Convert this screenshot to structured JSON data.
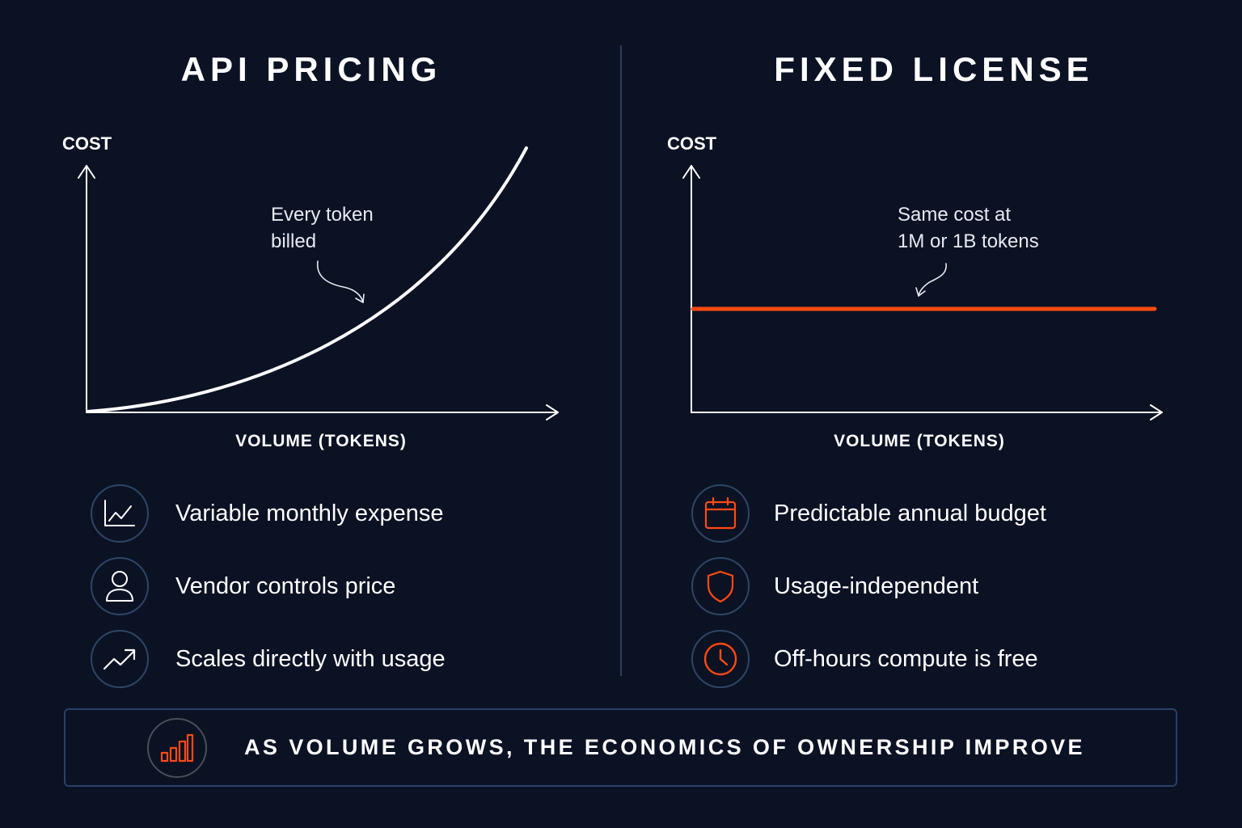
{
  "left": {
    "title": "API PRICING",
    "chart": {
      "y_label": "COST",
      "x_label": "VOLUME (TOKENS)",
      "annotation": [
        "Every token",
        "billed"
      ],
      "curve": "convex-increasing",
      "color": "#ffffff"
    },
    "features": [
      {
        "icon": "line-chart-icon",
        "label": "Variable monthly expense"
      },
      {
        "icon": "user-icon",
        "label": "Vendor controls price"
      },
      {
        "icon": "trending-up-icon",
        "label": "Scales directly with usage"
      }
    ]
  },
  "right": {
    "title": "FIXED LICENSE",
    "chart": {
      "y_label": "COST",
      "x_label": "VOLUME (TOKENS)",
      "annotation": [
        "Same cost at",
        "1M or 1B tokens"
      ],
      "curve": "flat",
      "color": "#ff4a12"
    },
    "features": [
      {
        "icon": "calendar-icon",
        "label": "Predictable annual budget"
      },
      {
        "icon": "shield-icon",
        "label": "Usage-independent"
      },
      {
        "icon": "clock-icon",
        "label": "Off-hours compute is free"
      }
    ]
  },
  "banner": {
    "icon": "bar-chart-icon",
    "text": "AS VOLUME GROWS, THE ECONOMICS OF OWNERSHIP IMPROVE"
  },
  "colors": {
    "background": "#0b1224",
    "accent": "#ff4a12",
    "icon_border": "#2f4466",
    "divider": "#2e3d5c"
  }
}
